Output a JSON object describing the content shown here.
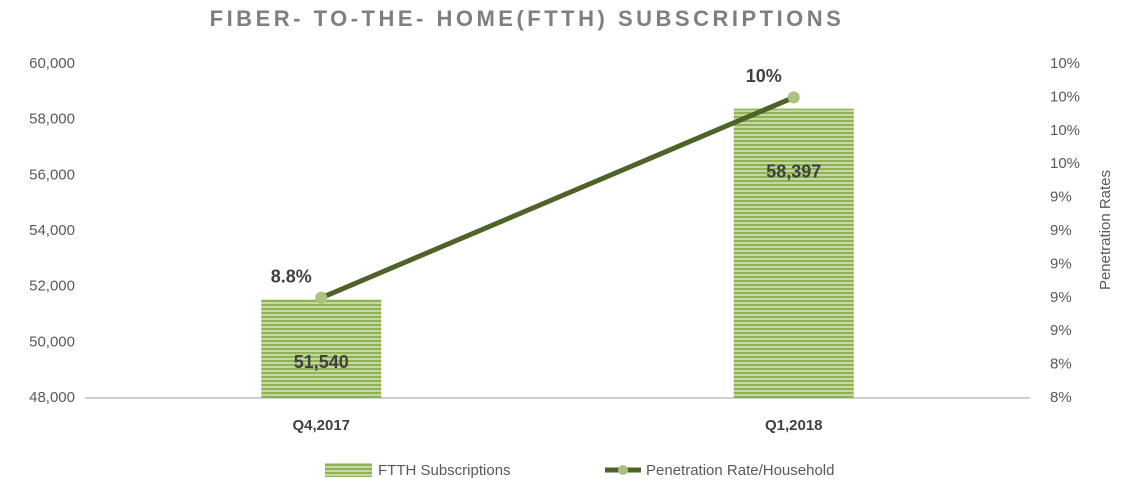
{
  "chart_data": {
    "type": "bar",
    "title": "FIBER- TO-THE- HOME(FTTH) SUBSCRIPTIONS",
    "y2_label": "Penetration Rates",
    "categories": [
      "Q4,2017",
      "Q1,2018"
    ],
    "series": [
      {
        "name": "FTTH Subscriptions",
        "type": "bar",
        "color": "#9bbb59",
        "values": [
          51540,
          58397
        ],
        "value_labels": [
          "51,540",
          "58,397"
        ]
      },
      {
        "name": "Penetration Rate/Household",
        "type": "line",
        "axis": "y2",
        "color": "#4f6228",
        "marker_color": "#a9c47f",
        "values": [
          8.8,
          10
        ],
        "value_labels": [
          "8.8%",
          "10%"
        ]
      }
    ],
    "ylim": [
      48000,
      60000
    ],
    "yticks": [
      {
        "value": 48000,
        "label": "48,000"
      },
      {
        "value": 50000,
        "label": "50,000"
      },
      {
        "value": 52000,
        "label": "52,000"
      },
      {
        "value": 54000,
        "label": "54,000"
      },
      {
        "value": 56000,
        "label": "56,000"
      },
      {
        "value": 58000,
        "label": "58,000"
      },
      {
        "value": 60000,
        "label": "60,000"
      }
    ],
    "y2lim": [
      8.2,
      10.2
    ],
    "y2ticks": [
      {
        "value": 8.2,
        "label": "8%"
      },
      {
        "value": 8.4,
        "label": "8%"
      },
      {
        "value": 8.6,
        "label": "9%"
      },
      {
        "value": 8.8,
        "label": "9%"
      },
      {
        "value": 9.0,
        "label": "9%"
      },
      {
        "value": 9.2,
        "label": "9%"
      },
      {
        "value": 9.4,
        "label": "9%"
      },
      {
        "value": 9.6,
        "label": "10%"
      },
      {
        "value": 9.8,
        "label": "10%"
      },
      {
        "value": 10.0,
        "label": "10%"
      },
      {
        "value": 10.2,
        "label": "10%"
      }
    ],
    "grid": false,
    "legend": "bottom"
  }
}
